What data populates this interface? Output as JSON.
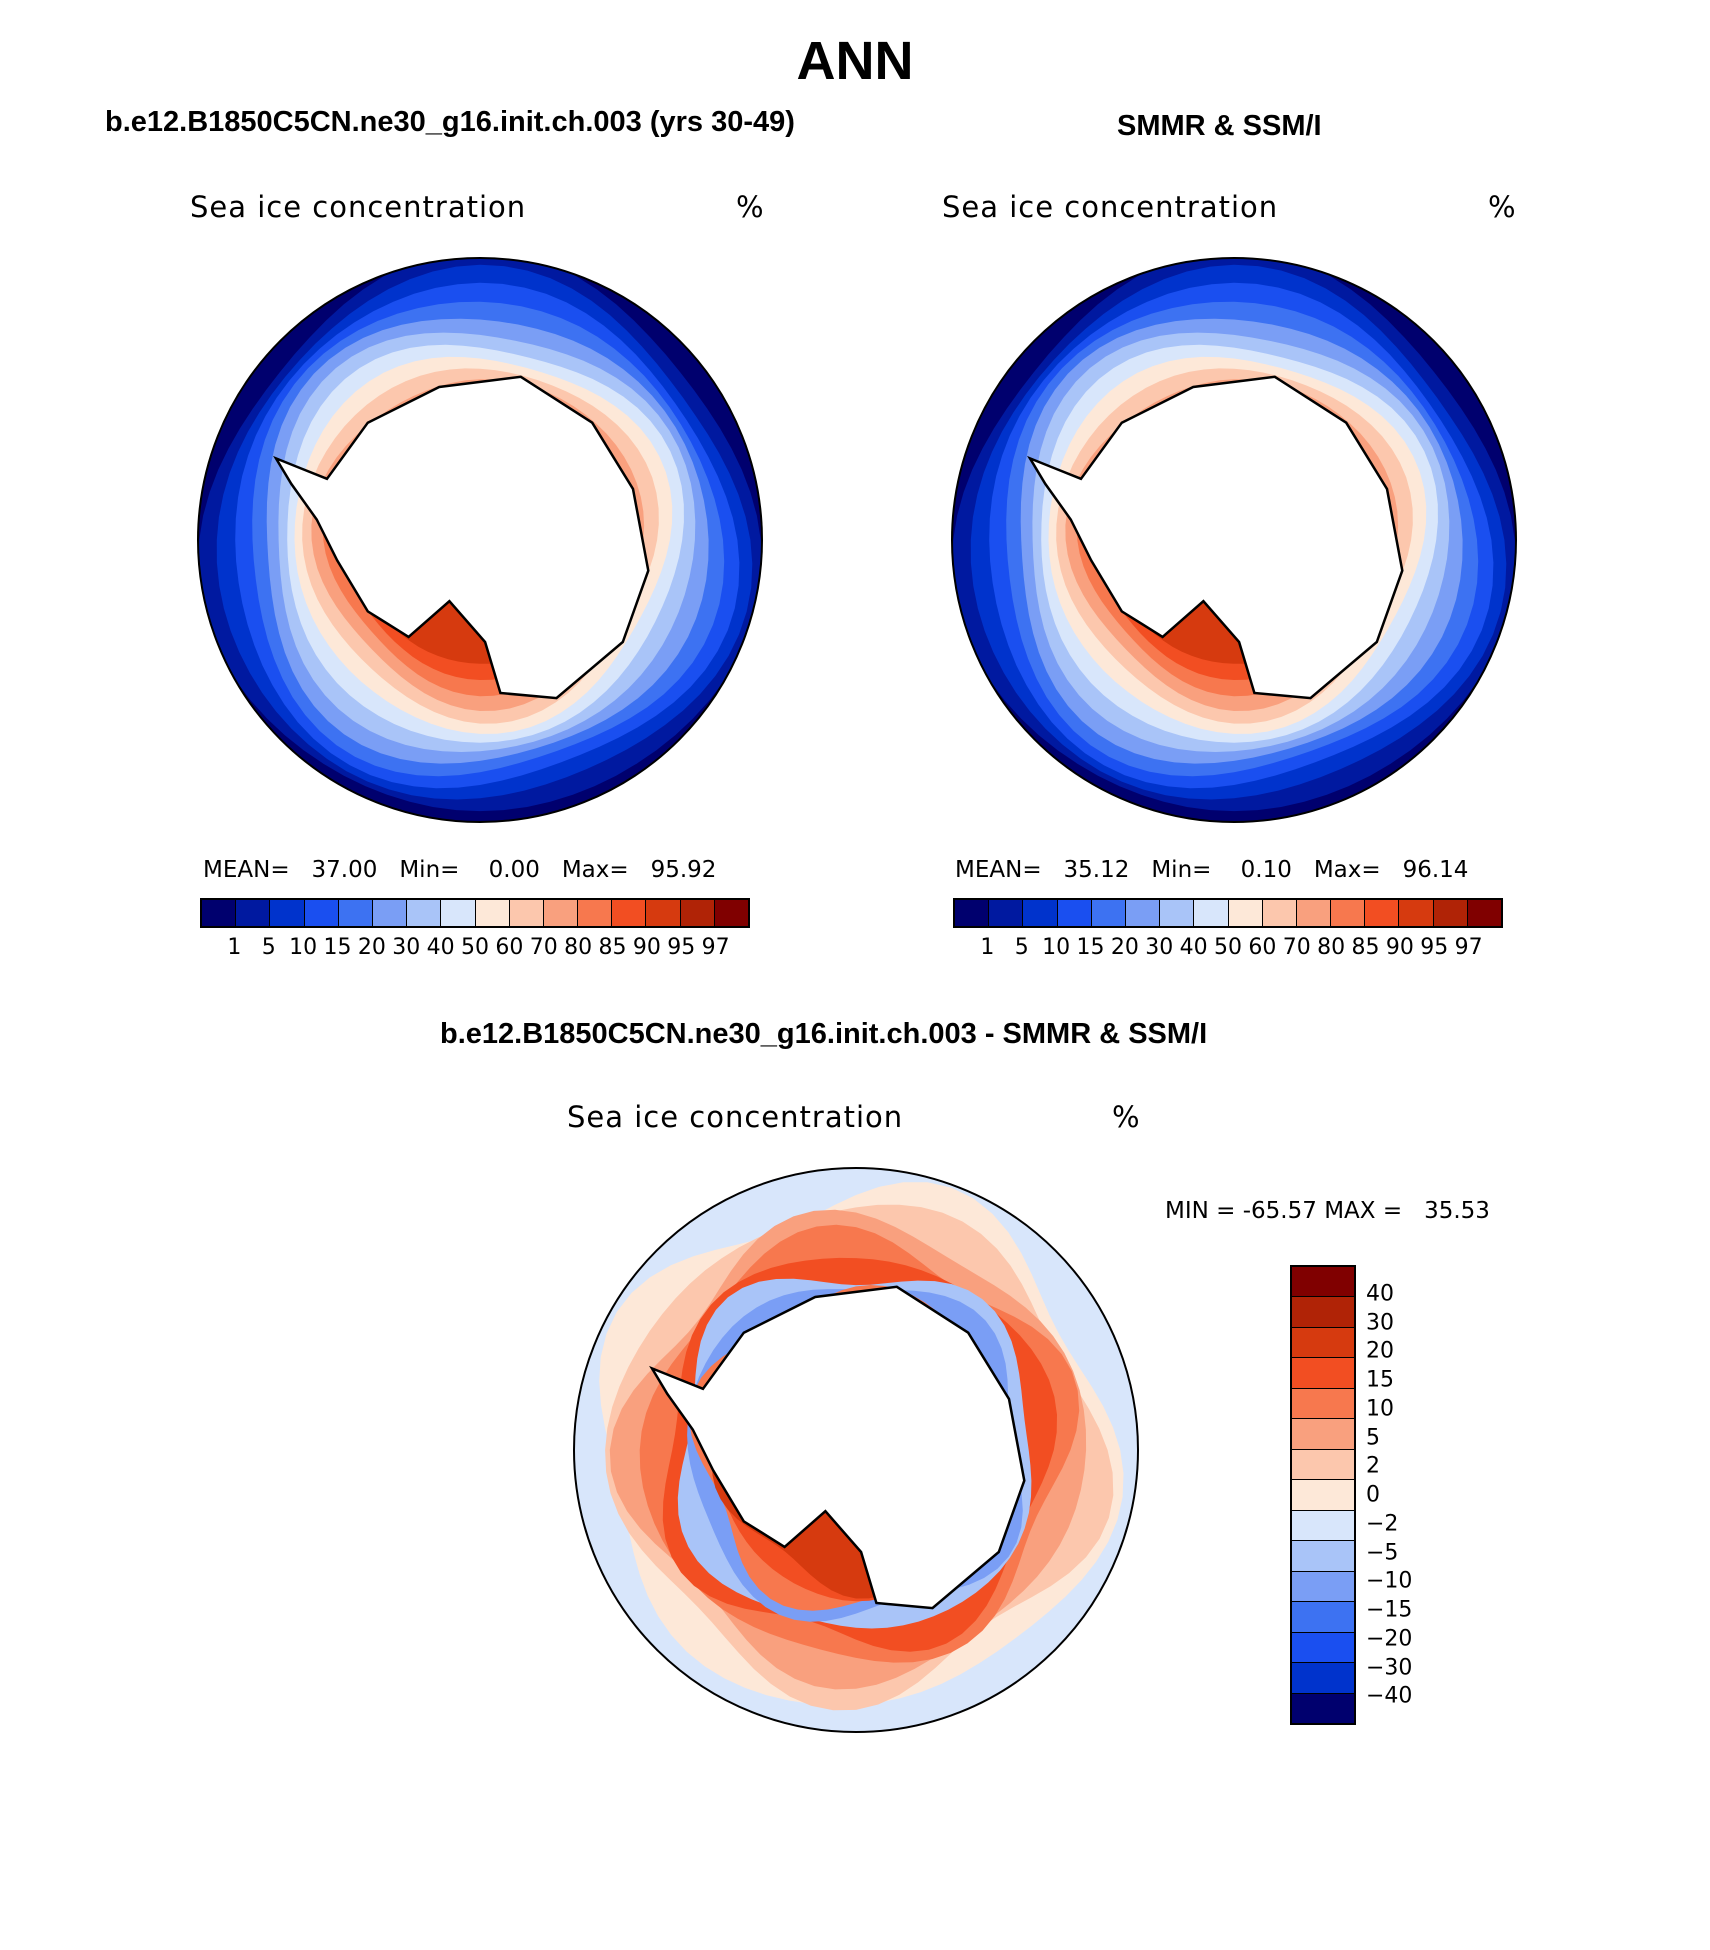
{
  "main_title": "ANN",
  "colors": {
    "seq": [
      "#00006e",
      "#0019a0",
      "#0033cc",
      "#1a4ff0",
      "#3d72f2",
      "#7a9ef5",
      "#a9c4f8",
      "#d8e6fb",
      "#fde8d8",
      "#fcc7ad",
      "#f9a07e",
      "#f7784e",
      "#f24e22",
      "#d63a0f",
      "#b02306",
      "#800000"
    ],
    "diff": [
      "#800000",
      "#b02306",
      "#d63a0f",
      "#f24e22",
      "#f7784e",
      "#f9a07e",
      "#fcc7ad",
      "#fde8d8",
      "#d8e6fb",
      "#a9c4f8",
      "#7a9ef5",
      "#3d72f2",
      "#1a4ff0",
      "#0033cc",
      "#00006e"
    ],
    "land": "#ffffff",
    "coast": "#000000"
  },
  "chart_data": [
    {
      "type": "heatmap",
      "title": "b.e12.B1850C5CN.ne30_g16.init.ch.003 (yrs 30-49)",
      "field": "Sea ice concentration",
      "units": "%",
      "stats": {
        "mean_label": "MEAN=",
        "mean": "37.00",
        "min_label": "Min=",
        "min": "0.00",
        "max_label": "Max=",
        "max": "95.92"
      },
      "levels": [
        "1",
        "5",
        "10",
        "15",
        "20",
        "30",
        "40",
        "50",
        "60",
        "70",
        "80",
        "85",
        "90",
        "95",
        "97"
      ]
    },
    {
      "type": "heatmap",
      "title": "SMMR & SSM/I",
      "field": "Sea ice concentration",
      "units": "%",
      "stats": {
        "mean_label": "MEAN=",
        "mean": "35.12",
        "min_label": "Min=",
        "min": "0.10",
        "max_label": "Max=",
        "max": "96.14"
      },
      "levels": [
        "1",
        "5",
        "10",
        "15",
        "20",
        "30",
        "40",
        "50",
        "60",
        "70",
        "80",
        "85",
        "90",
        "95",
        "97"
      ]
    },
    {
      "type": "heatmap",
      "title": "b.e12.B1850C5CN.ne30_g16.init.ch.003 - SMMR & SSM/I",
      "field": "Sea ice concentration",
      "units": "%",
      "stats": {
        "min_label": "MIN =",
        "min": "-65.57",
        "max_label": "MAX =",
        "max": "35.53"
      },
      "levels": [
        "40",
        "30",
        "20",
        "15",
        "10",
        "5",
        "2",
        "0",
        "−2",
        "−5",
        "−10",
        "−15",
        "−20",
        "−30",
        "−40"
      ]
    }
  ]
}
